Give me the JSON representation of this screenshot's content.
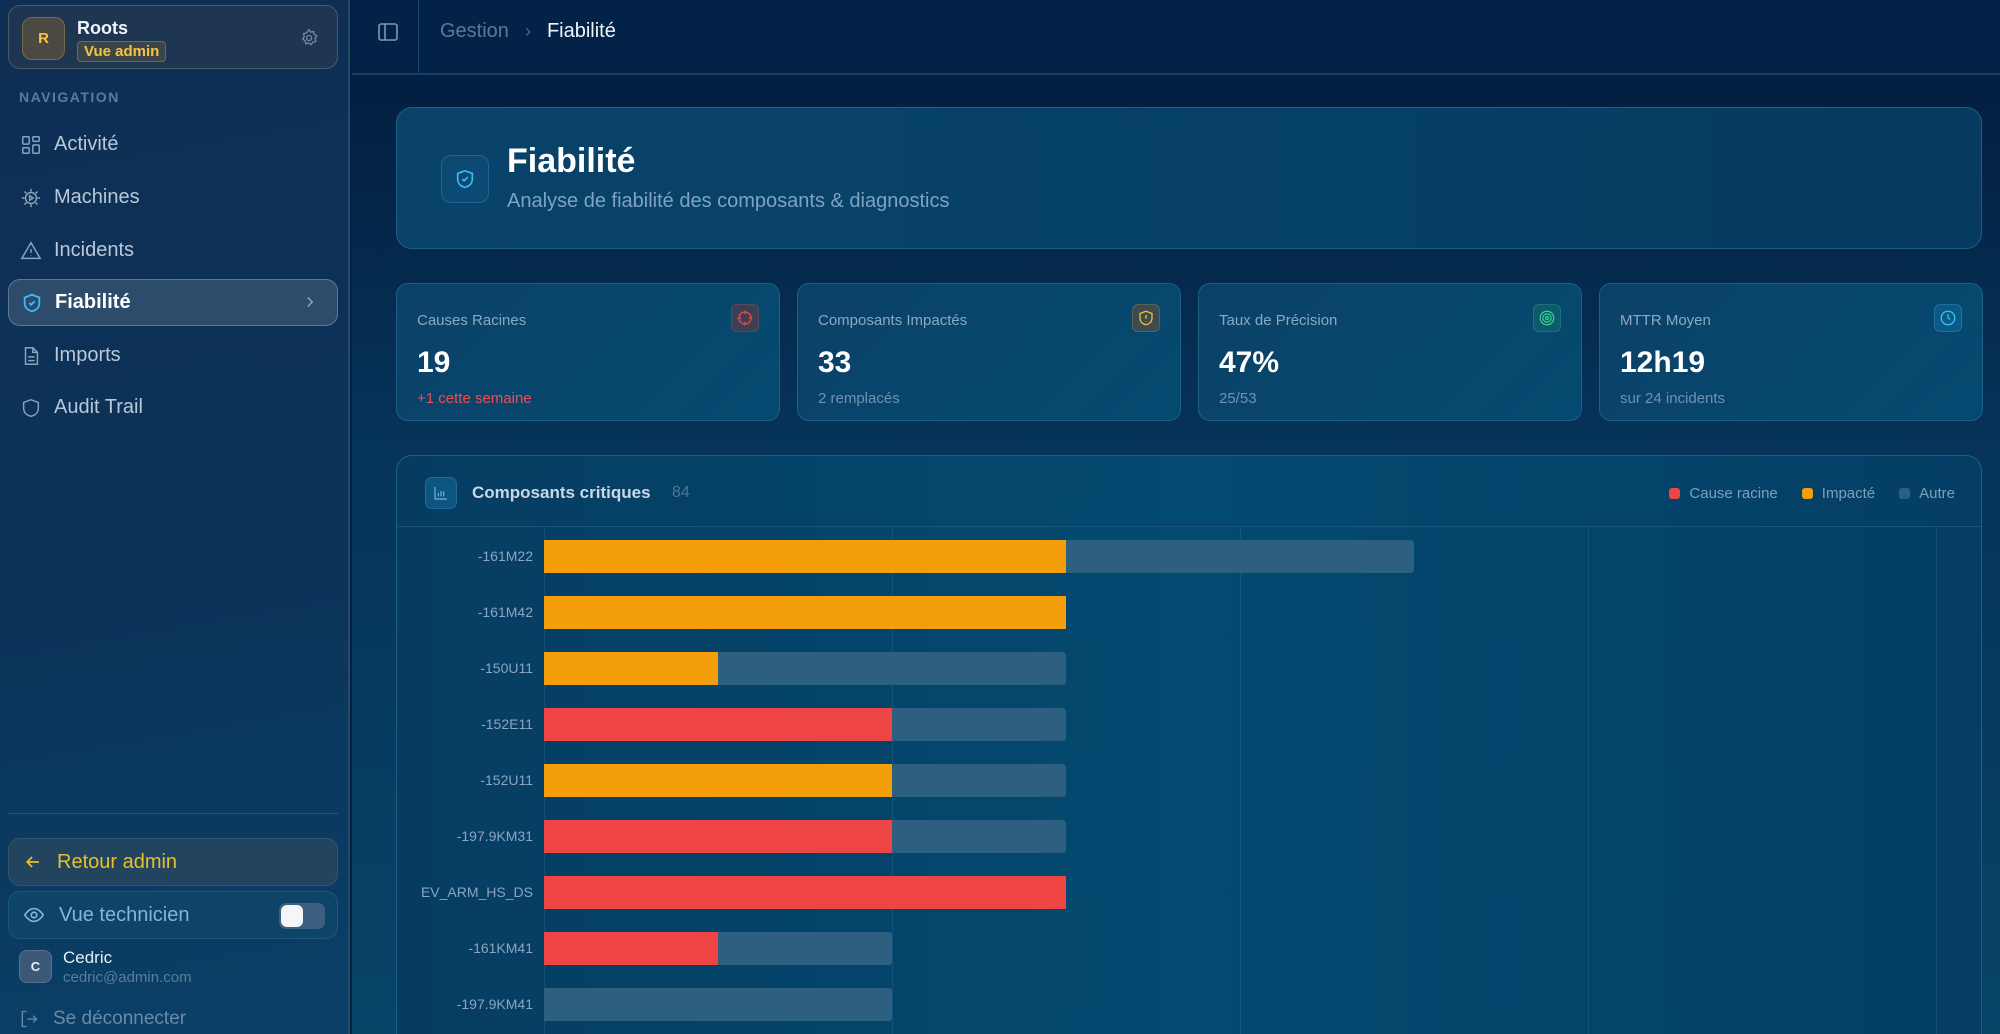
{
  "sidebar": {
    "org": {
      "initial": "R",
      "name": "Roots",
      "badge": "Vue admin"
    },
    "nav_heading": "NAVIGATION",
    "items": [
      {
        "label": "Activité",
        "icon": "grid-icon"
      },
      {
        "label": "Machines",
        "icon": "gear-icon"
      },
      {
        "label": "Incidents",
        "icon": "warning-icon"
      },
      {
        "label": "Fiabilité",
        "icon": "shield-check-icon",
        "active": true
      },
      {
        "label": "Imports",
        "icon": "file-icon"
      },
      {
        "label": "Audit Trail",
        "icon": "shield-icon"
      }
    ],
    "back_admin": "Retour admin",
    "tech_view": "Vue technicien",
    "tech_view_enabled": false,
    "user": {
      "initial": "C",
      "name": "Cedric",
      "email": "cedric@admin.com"
    },
    "logout": "Se déconnecter"
  },
  "topbar": {
    "breadcrumb": [
      "Gestion",
      "Fiabilité"
    ]
  },
  "hero": {
    "title": "Fiabilité",
    "subtitle": "Analyse de fiabilité des composants & diagnostics"
  },
  "stats": [
    {
      "label": "Causes Racines",
      "value": "19",
      "sub": "+1 cette semaine",
      "icon": "crosshair-icon",
      "color": "#ef4444"
    },
    {
      "label": "Composants Impactés",
      "value": "33",
      "sub": "2 remplacés",
      "icon": "shield-alert-icon",
      "color": "#f5b82e"
    },
    {
      "label": "Taux de Précision",
      "value": "47%",
      "sub": "25/53",
      "icon": "target-icon",
      "color": "#34d399"
    },
    {
      "label": "MTTR Moyen",
      "value": "12h19",
      "sub": "sur 24 incidents",
      "icon": "clock-icon",
      "color": "#38bdf8"
    }
  ],
  "chart": {
    "title": "Composants critiques",
    "count": "84",
    "legend": [
      {
        "label": "Cause racine",
        "color": "#ef4444"
      },
      {
        "label": "Impacté",
        "color": "#f59e0b"
      },
      {
        "label": "Autre",
        "color": "#2d6080"
      }
    ]
  },
  "chart_data": {
    "type": "bar",
    "orientation": "horizontal",
    "stacked": true,
    "title": "Composants critiques",
    "categories": [
      "-161M22",
      "-161M42",
      "-150U11",
      "-152E11",
      "-152U11",
      "-197.9KM31",
      "EV_ARM_HS_DS",
      "-161KM41",
      "-197.9KM41"
    ],
    "series": [
      {
        "name": "Cause racine",
        "color": "#ef4444",
        "values": [
          0,
          0,
          0,
          2,
          0,
          2,
          3,
          1,
          0
        ]
      },
      {
        "name": "Impacté",
        "color": "#f59e0b",
        "values": [
          3,
          3,
          1,
          0,
          2,
          0,
          0,
          0,
          0
        ]
      },
      {
        "name": "Autre",
        "color": "#2d6080",
        "values": [
          2,
          0,
          2,
          1,
          1,
          1,
          0,
          1,
          2
        ]
      }
    ],
    "xlim": [
      0,
      8
    ],
    "grid_step": 2,
    "grid": true,
    "legend_position": "top-right"
  }
}
